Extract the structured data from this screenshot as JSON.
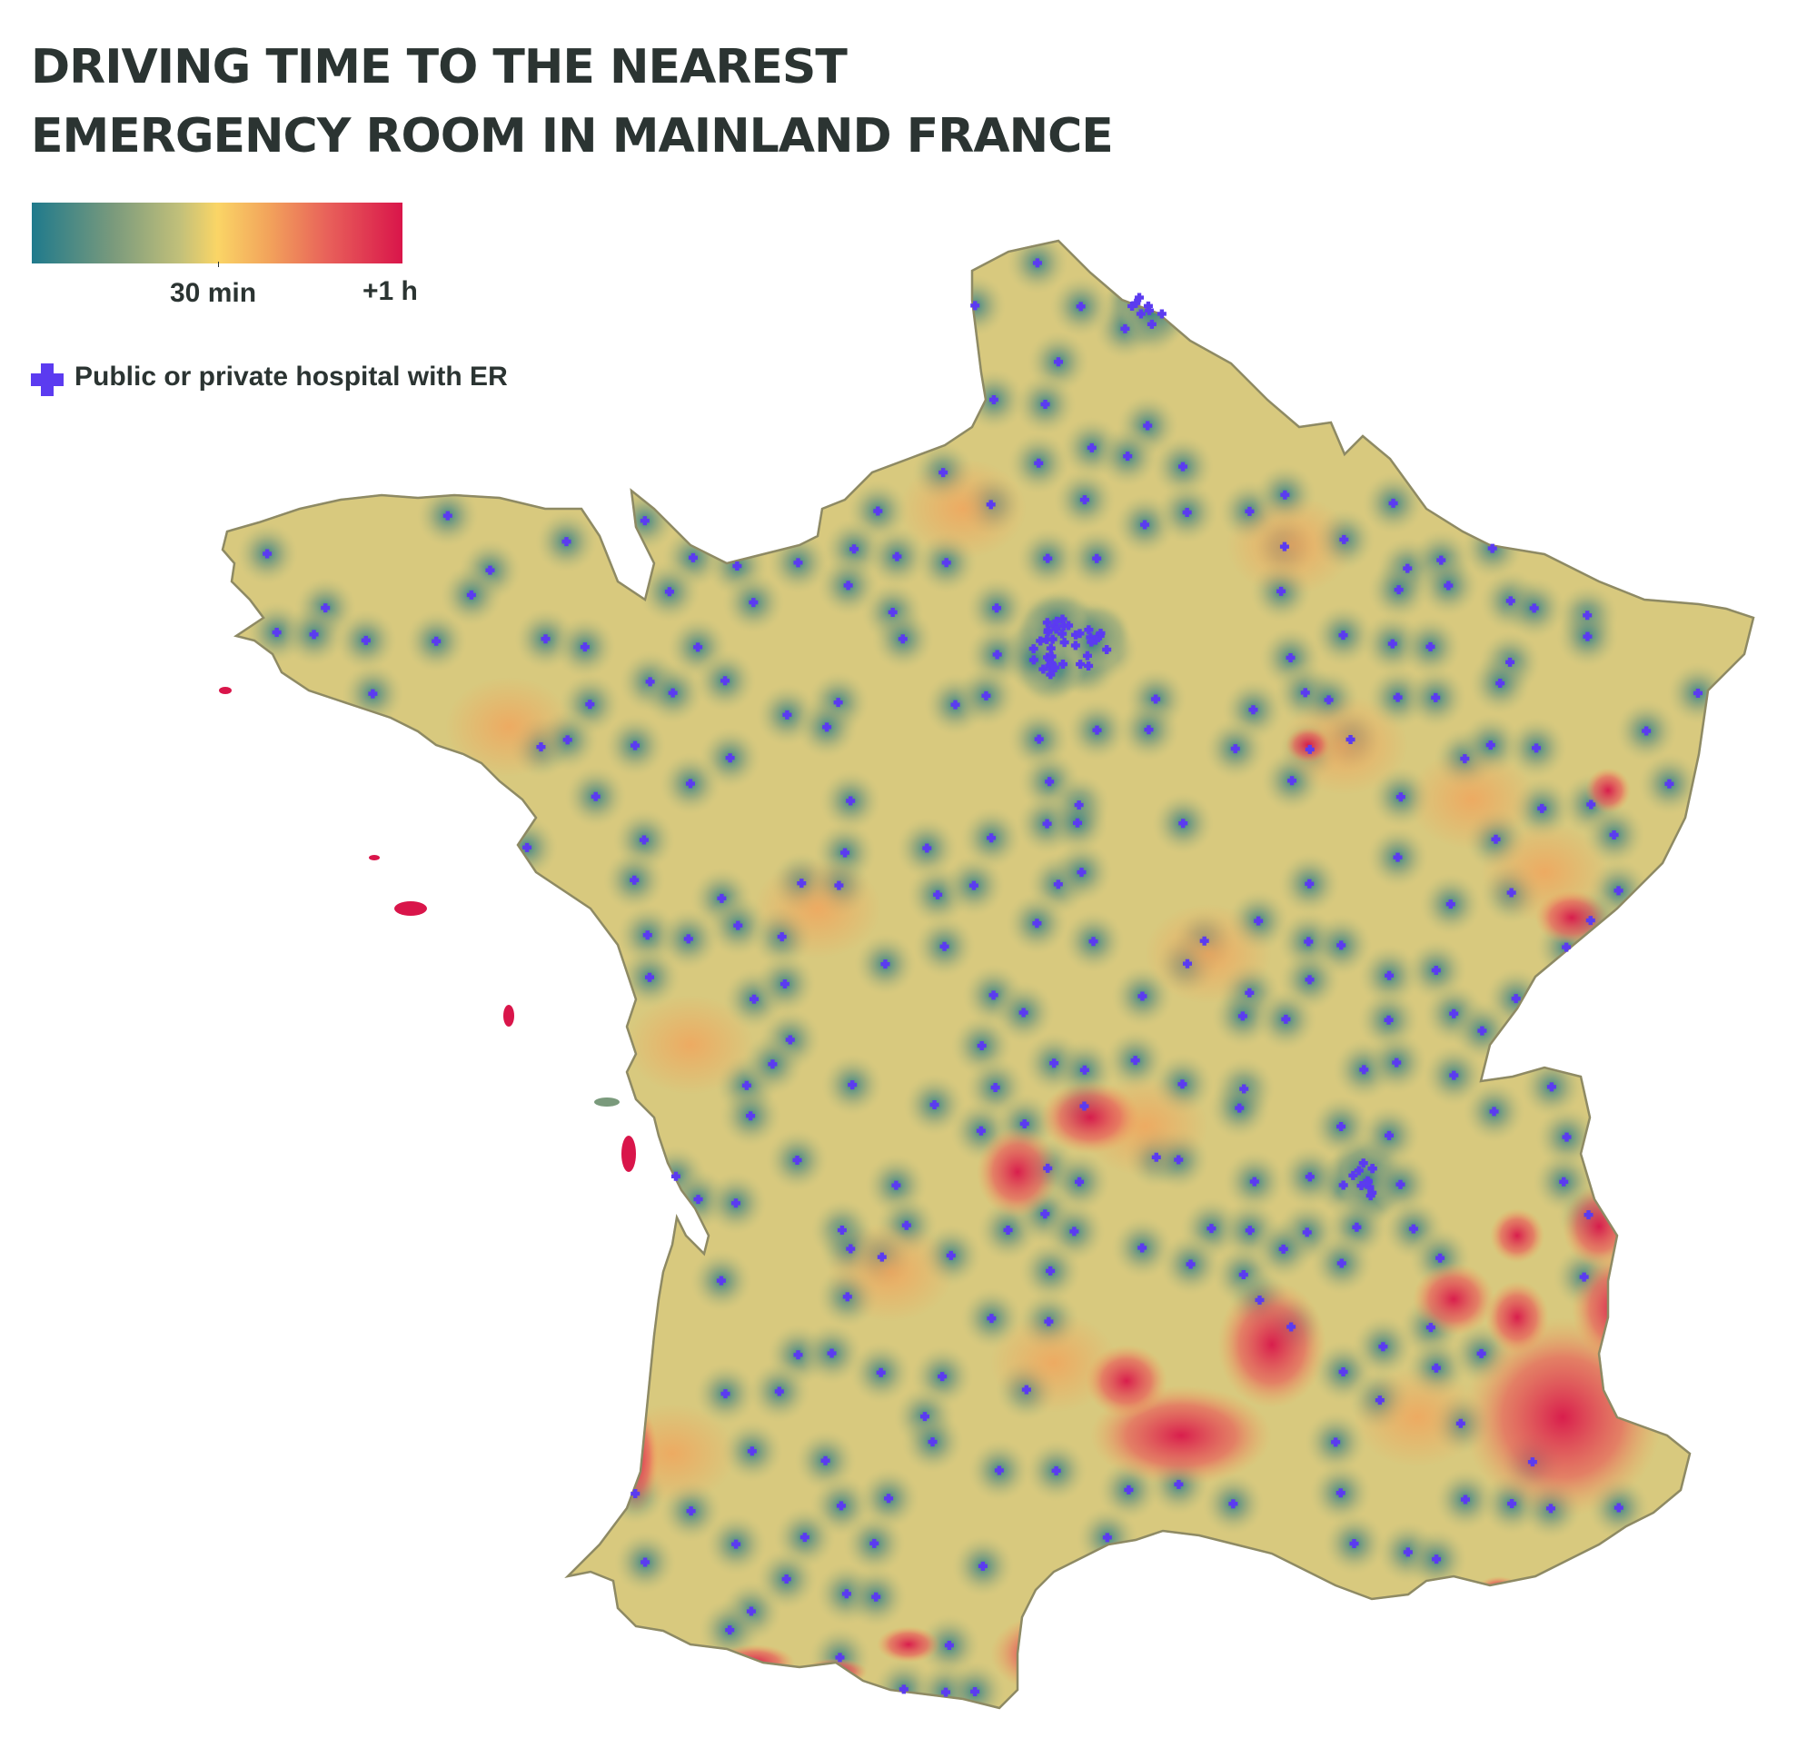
{
  "title": {
    "line1": "DRIVING TIME TO THE NEAREST",
    "line2": "EMERGENCY ROOM IN MAINLAND FRANCE"
  },
  "legend": {
    "colors": [
      "#1f7a8c",
      "#7a9a7c",
      "#c2c07a",
      "#fad566",
      "#f2a35b",
      "#e8605a",
      "#d9154a"
    ],
    "tick_30": "30 min",
    "tick_max": "+1 h",
    "marker_label": "Public or private hospital with ER",
    "marker_color": "#5b3bf0",
    "marker_icon": "plus-icon"
  },
  "map": {
    "region": "Mainland France",
    "land_base_color": "#d8c97e",
    "hotspot_color": "#d9154a"
  }
}
